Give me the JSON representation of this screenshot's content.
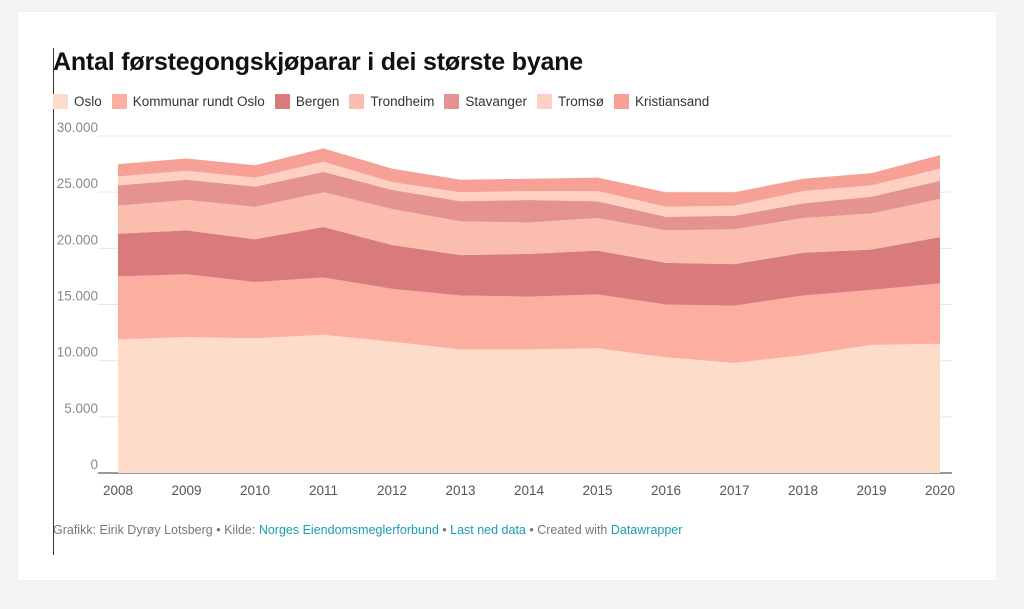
{
  "title": "Antal førstegongskjøparar i dei største byane",
  "footer": {
    "graphic_prefix": "Grafikk: Eirik Dyrøy Lotsberg • Kilde: ",
    "source_link": "Norges Eiendomsmeglerforbund",
    "separator1": " • ",
    "download_link": "Last ned data",
    "created_prefix": " • Created with ",
    "datawrapper_link": "Datawrapper"
  },
  "chart_data": {
    "type": "area",
    "stacked": true,
    "title": "Antal førstegongskjøparar i dei største byane",
    "xlabel": "",
    "ylabel": "",
    "x": [
      "2008",
      "2009",
      "2010",
      "2011",
      "2012",
      "2013",
      "2014",
      "2015",
      "2016",
      "2017",
      "2018",
      "2019",
      "2020"
    ],
    "ylim": [
      0,
      30000
    ],
    "yticks": [
      0,
      5000,
      10000,
      15000,
      20000,
      25000,
      30000
    ],
    "ytick_labels": [
      "0",
      "5.000",
      "10.000",
      "15.000",
      "20.000",
      "25.000",
      "30.000"
    ],
    "grid": true,
    "legend_position": "top-left",
    "series": [
      {
        "name": "Oslo",
        "color": "#fddcc9",
        "values": [
          11900,
          12100,
          12000,
          12300,
          11700,
          11000,
          11000,
          11100,
          10300,
          9800,
          10500,
          11400,
          11500
        ]
      },
      {
        "name": "Kommunar rundt Oslo",
        "color": "#fcaea0",
        "values": [
          5600,
          5600,
          5000,
          5100,
          4700,
          4800,
          4700,
          4800,
          4700,
          5100,
          5300,
          4900,
          5400
        ]
      },
      {
        "name": "Bergen",
        "color": "#d97a7c",
        "values": [
          3800,
          3900,
          3800,
          4500,
          3900,
          3600,
          3800,
          3900,
          3700,
          3700,
          3800,
          3600,
          4100
        ]
      },
      {
        "name": "Trondheim",
        "color": "#fbbeae",
        "values": [
          2500,
          2700,
          2900,
          3100,
          3200,
          3000,
          2800,
          2900,
          2900,
          3100,
          3100,
          3200,
          3400
        ]
      },
      {
        "name": "Stavanger",
        "color": "#e49390",
        "values": [
          1800,
          1800,
          1800,
          1800,
          1700,
          1800,
          2000,
          1500,
          1200,
          1200,
          1300,
          1500,
          1600
        ]
      },
      {
        "name": "Tromsø",
        "color": "#fdd0c1",
        "values": [
          800,
          800,
          800,
          900,
          700,
          800,
          800,
          900,
          900,
          900,
          1100,
          1000,
          1100
        ]
      },
      {
        "name": "Kristiansand",
        "color": "#f6a096",
        "values": [
          1100,
          1100,
          1100,
          1200,
          1200,
          1100,
          1100,
          1200,
          1300,
          1200,
          1100,
          1100,
          1200
        ]
      }
    ]
  }
}
